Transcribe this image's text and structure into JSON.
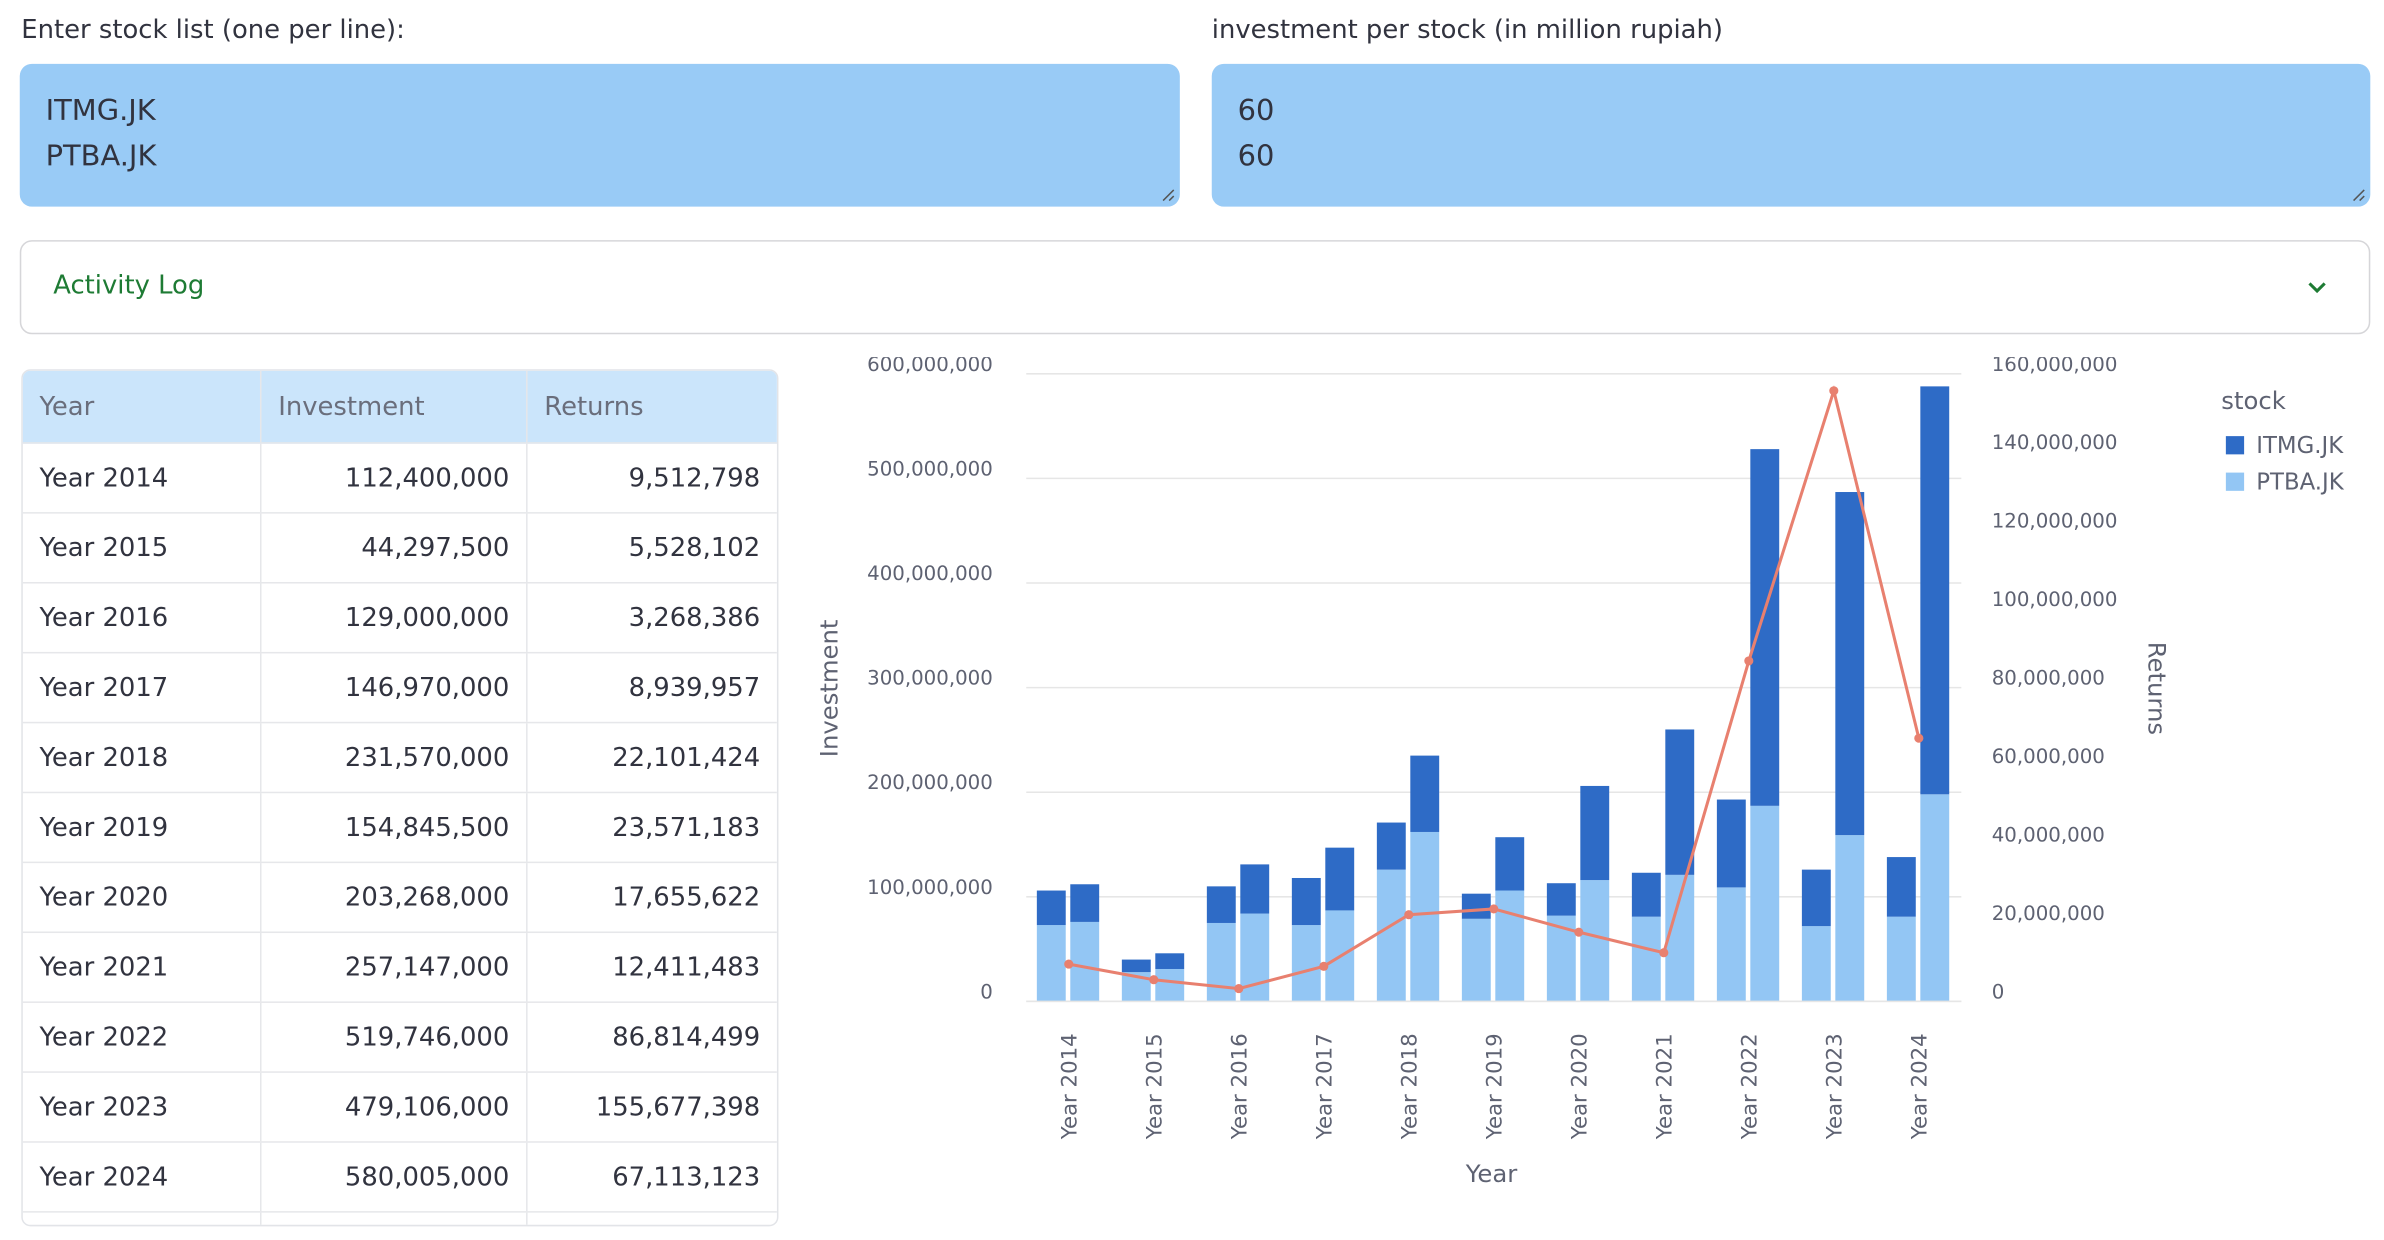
{
  "inputs": {
    "stocks_label": "Enter stock list (one per line):",
    "stocks_lines": [
      "ITMG.JK",
      "PTBA.JK"
    ],
    "investment_label": "investment per stock (in million rupiah)",
    "investment_lines": [
      "60",
      "60"
    ]
  },
  "activity_log": "Activity Log",
  "table": {
    "columns": [
      "Year",
      "Investment",
      "Returns"
    ],
    "rows": [
      [
        "Year 2014",
        "112,400,000",
        "9,512,798"
      ],
      [
        "Year 2015",
        "44,297,500",
        "5,528,102"
      ],
      [
        "Year 2016",
        "129,000,000",
        "3,268,386"
      ],
      [
        "Year 2017",
        "146,970,000",
        "8,939,957"
      ],
      [
        "Year 2018",
        "231,570,000",
        "22,101,424"
      ],
      [
        "Year 2019",
        "154,845,500",
        "23,571,183"
      ],
      [
        "Year 2020",
        "203,268,000",
        "17,655,622"
      ],
      [
        "Year 2021",
        "257,147,000",
        "12,411,483"
      ],
      [
        "Year 2022",
        "519,746,000",
        "86,814,499"
      ],
      [
        "Year 2023",
        "479,106,000",
        "155,677,398"
      ],
      [
        "Year 2024",
        "580,005,000",
        "67,113,123"
      ]
    ]
  },
  "chart_data": {
    "type": "bar",
    "stacked": true,
    "x_label": "Year",
    "y_label": "Investment",
    "y2_label": "Returns",
    "legend_title": "stock",
    "categories": [
      "Year 2014",
      "Year 2015",
      "Year 2016",
      "Year 2017",
      "Year 2018",
      "Year 2019",
      "Year 2020",
      "Year 2021",
      "Year 2022",
      "Year 2023",
      "Year 2024"
    ],
    "series": [
      {
        "name": "PTBA.JK",
        "color": "#93c6f4",
        "values": [
          [
            73000000,
            76000000
          ],
          [
            28000000,
            31000000
          ],
          [
            75000000,
            84000000
          ],
          [
            73000000,
            87000000
          ],
          [
            126000000,
            162000000
          ],
          [
            79000000,
            106000000
          ],
          [
            82000000,
            116000000
          ],
          [
            81000000,
            121000000
          ],
          [
            109000000,
            187000000
          ],
          [
            72000000,
            159000000
          ],
          [
            81000000,
            198000000
          ]
        ]
      },
      {
        "name": "ITMG.JK",
        "color": "#2e6bc6",
        "values": [
          [
            33000000,
            36000000
          ],
          [
            12000000,
            15000000
          ],
          [
            35000000,
            47000000
          ],
          [
            45000000,
            60000000
          ],
          [
            45000000,
            73000000
          ],
          [
            24000000,
            51000000
          ],
          [
            31000000,
            90000000
          ],
          [
            42000000,
            139000000
          ],
          [
            84000000,
            341000000
          ],
          [
            54000000,
            328000000
          ],
          [
            57000000,
            390000000
          ]
        ]
      }
    ],
    "line": {
      "axis": "y2",
      "color": "#e8806f",
      "values": [
        9512798,
        5528102,
        3268386,
        8939957,
        22101424,
        23571183,
        17655622,
        12411483,
        86814499,
        155677398,
        67113123
      ]
    },
    "legend_order": [
      1,
      0
    ],
    "ylim": [
      0,
      600000000
    ],
    "yticks": [
      0,
      {
        "value": 100000000,
        "label": "100,000,000"
      },
      {
        "value": 200000000,
        "label": "200,000,000"
      },
      {
        "value": 300000000,
        "label": "300,000,000"
      },
      {
        "value": 400000000,
        "label": "400,000,000"
      },
      {
        "value": 500000000,
        "label": "500,000,000"
      },
      {
        "value": 600000000,
        "label": "600,000,000"
      }
    ],
    "y2lim": [
      0,
      160000000
    ],
    "y2ticks": [
      0,
      {
        "value": 20000000,
        "label": "20,000,000"
      },
      {
        "value": 40000000,
        "label": "40,000,000"
      },
      {
        "value": 60000000,
        "label": "60,000,000"
      },
      {
        "value": 80000000,
        "label": "80,000,000"
      },
      {
        "value": 100000000,
        "label": "100,000,000"
      },
      {
        "value": 120000000,
        "label": "120,000,000"
      },
      {
        "value": 140000000,
        "label": "140,000,000"
      },
      {
        "value": 160000000,
        "label": "160,000,000"
      }
    ],
    "grid": true
  }
}
